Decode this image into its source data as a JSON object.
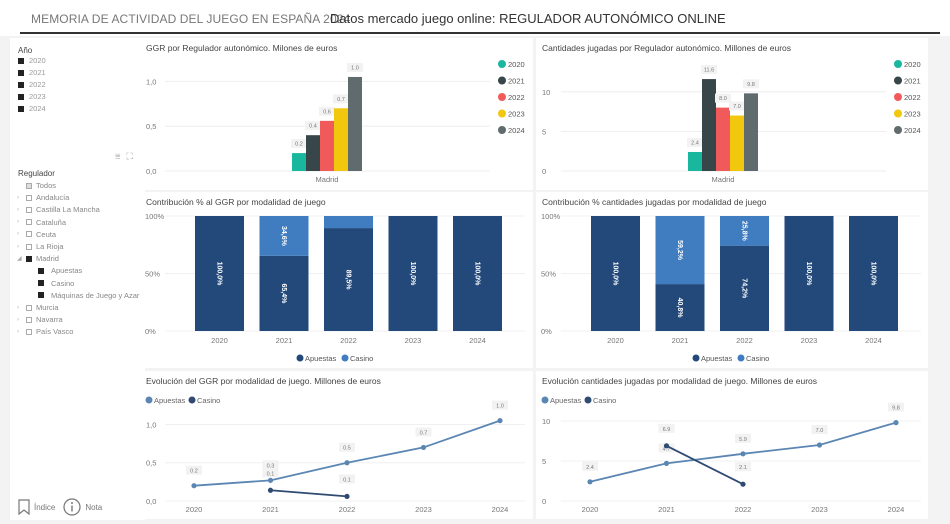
{
  "header": {
    "title": "MEMORIA DE ACTIVIDAD DEL JUEGO EN ESPAÑA 2024",
    "subtitle": "Datos mercado juego online: REGULADOR AUTONÓMICO ONLINE"
  },
  "sidebar": {
    "year_slicer": {
      "title": "Año",
      "items": [
        {
          "label": "2020",
          "checked": true
        },
        {
          "label": "2021",
          "checked": true
        },
        {
          "label": "2022",
          "checked": true
        },
        {
          "label": "2023",
          "checked": true
        },
        {
          "label": "2024",
          "checked": true
        }
      ]
    },
    "toolbar_icons": [
      "filter-icon",
      "focus-mode-icon"
    ],
    "regulator_slicer": {
      "title": "Regulador",
      "items": [
        {
          "label": "Todos",
          "level": 0,
          "expander": "",
          "state": "partial"
        },
        {
          "label": "Andalucía",
          "level": 0,
          "expander": "›",
          "state": "off"
        },
        {
          "label": "Castilla La Mancha",
          "level": 0,
          "expander": "›",
          "state": "off"
        },
        {
          "label": "Cataluña",
          "level": 0,
          "expander": "›",
          "state": "off"
        },
        {
          "label": "Ceuta",
          "level": 0,
          "expander": "›",
          "state": "off"
        },
        {
          "label": "La Rioja",
          "level": 0,
          "expander": "›",
          "state": "off"
        },
        {
          "label": "Madrid",
          "level": 0,
          "expander": "◢",
          "state": "on"
        },
        {
          "label": "Apuestas",
          "level": 1,
          "expander": "",
          "state": "on"
        },
        {
          "label": "Casino",
          "level": 1,
          "expander": "",
          "state": "on"
        },
        {
          "label": "Máquinas de Juego y Azar",
          "level": 1,
          "expander": "",
          "state": "on"
        },
        {
          "label": "Murcia",
          "level": 0,
          "expander": "›",
          "state": "off"
        },
        {
          "label": "Navarra",
          "level": 0,
          "expander": "›",
          "state": "off"
        },
        {
          "label": "País Vasco",
          "level": 0,
          "expander": "›",
          "state": "off"
        }
      ]
    },
    "footer": {
      "index_label": "Índice",
      "note_label": "Nota"
    }
  },
  "colors": {
    "y2020": "#1ab79f",
    "y2021": "#374649",
    "y2022": "#f05a5a",
    "y2023": "#f2c80f",
    "y2024": "#5f6b6d",
    "apuestas_dark": "#23497b",
    "casino_light": "#3f7cc0",
    "line_apuestas": "#5b86b3",
    "line_casino": "#2f4b72"
  },
  "chart_data": [
    {
      "id": "ggr_regulador",
      "type": "bar",
      "title": "GGR por Regulador autonómico. Milones de euros",
      "categories": [
        "Madrid"
      ],
      "series": [
        {
          "name": "2020",
          "values": [
            0.2
          ],
          "label": "0.2"
        },
        {
          "name": "2021",
          "values": [
            0.4
          ],
          "label": "0.4"
        },
        {
          "name": "2022",
          "values": [
            0.56
          ],
          "label": "0.6"
        },
        {
          "name": "2023",
          "values": [
            0.7
          ],
          "label": "0.7"
        },
        {
          "name": "2024",
          "values": [
            1.05
          ],
          "label": "1.0"
        }
      ],
      "yticks": [
        "0,0",
        "0,5",
        "1,0"
      ],
      "ylim": [
        0,
        1.15
      ],
      "legend": "right",
      "grid": true
    },
    {
      "id": "cantidades_regulador",
      "type": "bar",
      "title": "Cantidades jugadas por Regulador autonómico. Millones de euros",
      "categories": [
        "Madrid"
      ],
      "series": [
        {
          "name": "2020",
          "values": [
            2.4
          ],
          "label": "2.4"
        },
        {
          "name": "2021",
          "values": [
            11.6
          ],
          "label": "11.6"
        },
        {
          "name": "2022",
          "values": [
            8.0
          ],
          "label": "8.0"
        },
        {
          "name": "2023",
          "values": [
            7.0
          ],
          "label": "7.0"
        },
        {
          "name": "2024",
          "values": [
            9.8
          ],
          "label": "9.8"
        }
      ],
      "yticks": [
        "0",
        "5",
        "10"
      ],
      "ylim": [
        0,
        13
      ],
      "legend": "right",
      "grid": true
    },
    {
      "id": "ggr_contribucion",
      "type": "bar",
      "stacked": true,
      "title": "Contribución % al GGR por modalidad de juego",
      "categories": [
        "2020",
        "2021",
        "2022",
        "2023",
        "2024"
      ],
      "series": [
        {
          "name": "Apuestas",
          "values": [
            100.0,
            65.4,
            89.5,
            100.0,
            100.0
          ],
          "labels": [
            "100,0%",
            "65,4%",
            "89,5%",
            "100,0%",
            "100,0%"
          ]
        },
        {
          "name": "Casino",
          "values": [
            0,
            34.6,
            10.5,
            0,
            0
          ],
          "labels": [
            "",
            "34,6%",
            "",
            "",
            ""
          ]
        }
      ],
      "yticks": [
        "0%",
        "50%",
        "100%"
      ],
      "ylim": [
        0,
        100
      ],
      "legend": "bottom"
    },
    {
      "id": "cantidades_contribucion",
      "type": "bar",
      "stacked": true,
      "title": "Contribución % cantidades jugadas por modalidad de juego",
      "categories": [
        "2020",
        "2021",
        "2022",
        "2023",
        "2024"
      ],
      "series": [
        {
          "name": "Apuestas",
          "values": [
            100.0,
            40.8,
            74.2,
            100.0,
            100.0
          ],
          "labels": [
            "100,0%",
            "40,8%",
            "74,2%",
            "100,0%",
            "100,0%"
          ]
        },
        {
          "name": "Casino",
          "values": [
            0,
            59.2,
            25.8,
            0,
            0
          ],
          "labels": [
            "",
            "59,2%",
            "25,8%",
            "",
            ""
          ]
        }
      ],
      "yticks": [
        "0%",
        "50%",
        "100%"
      ],
      "ylim": [
        0,
        100
      ],
      "legend": "bottom"
    },
    {
      "id": "ggr_evolucion",
      "type": "line",
      "title": "Evolución del GGR por modalidad de juego. Millones de euros",
      "x": [
        "2020",
        "2021",
        "2022",
        "2023",
        "2024"
      ],
      "series": [
        {
          "name": "Apuestas",
          "values": [
            0.2,
            0.27,
            0.5,
            0.7,
            1.05
          ],
          "labels": [
            "0.2",
            "0.3",
            "0.5",
            "0.7",
            "1.0"
          ]
        },
        {
          "name": "Casino",
          "values": [
            null,
            0.14,
            0.06,
            null,
            null
          ],
          "labels": [
            "",
            "0.1",
            "0.1",
            "",
            ""
          ]
        }
      ],
      "yticks": [
        "0,0",
        "0,5",
        "1,0"
      ],
      "ylim": [
        0,
        1.15
      ],
      "legend": "top-left"
    },
    {
      "id": "cantidades_evolucion",
      "type": "line",
      "title": "Evolución cantidades jugadas por modalidad de juego. Millones de euros",
      "x": [
        "2020",
        "2021",
        "2022",
        "2023",
        "2024"
      ],
      "series": [
        {
          "name": "Apuestas",
          "values": [
            2.4,
            4.7,
            5.9,
            7.0,
            9.8
          ],
          "labels": [
            "2.4",
            "4.7",
            "5.9",
            "7.0",
            "9.8"
          ]
        },
        {
          "name": "Casino",
          "values": [
            null,
            6.9,
            2.1,
            null,
            null
          ],
          "labels": [
            "",
            "6.9",
            "2.1",
            "",
            ""
          ]
        }
      ],
      "yticks": [
        "0",
        "5",
        "10"
      ],
      "ylim": [
        0,
        11
      ],
      "legend": "top-left"
    }
  ]
}
